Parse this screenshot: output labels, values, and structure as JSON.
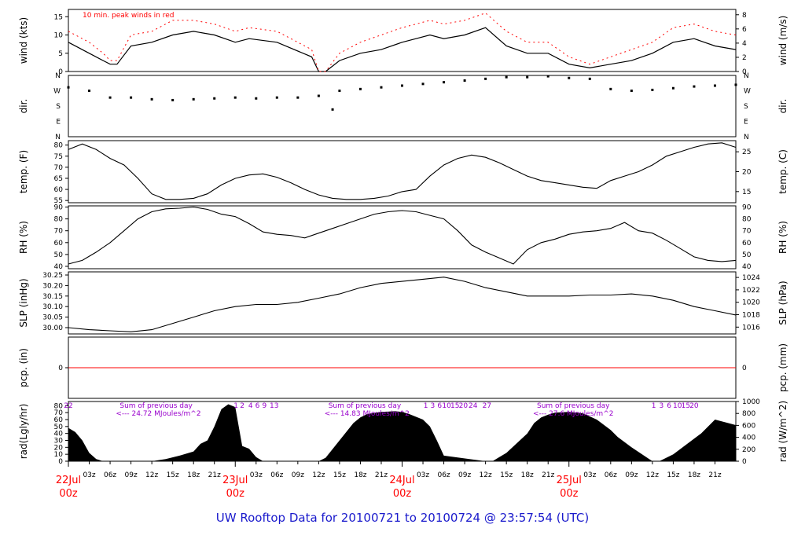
{
  "footer": {
    "title": "UW Rooftop Data for 20100721  to  20100724 @ 23:57:54  (UTC)"
  },
  "colors": {
    "peak": "#ff0000",
    "annot": "#9900cc",
    "date": "#ff0000",
    "title": "#1a1acc",
    "trace": "#000000"
  },
  "chart_data": [
    {
      "type": "line",
      "id": "wind",
      "ylabel": "wind (kts)",
      "ylabel_right": "wind (m/s)",
      "annotation": "10 min. peak winds in red",
      "ylim": [
        0,
        17
      ],
      "yticks": [
        0,
        5,
        10,
        15
      ],
      "ylim_right": [
        0,
        8.75
      ],
      "yticks_right": [
        0,
        2,
        4,
        6,
        8
      ],
      "x_hours": [
        0,
        3,
        5,
        6,
        7,
        9,
        12,
        15,
        18,
        21,
        24,
        26,
        30,
        35,
        36,
        37,
        39,
        42,
        45,
        48,
        50,
        52,
        54,
        57,
        60,
        63,
        66,
        69,
        72,
        75,
        78,
        81,
        84,
        87,
        90,
        93,
        96
      ],
      "series": [
        {
          "role": "mean",
          "values": [
            8,
            5,
            3,
            2,
            2,
            7,
            8,
            10,
            11,
            10,
            8,
            9,
            8,
            4,
            0,
            0,
            3,
            5,
            6,
            8,
            9,
            10,
            9,
            10,
            12,
            7,
            5,
            5,
            2,
            1,
            2,
            3,
            5,
            8,
            9,
            7,
            6
          ]
        },
        {
          "role": "peak",
          "values": [
            11,
            8,
            5,
            3,
            3,
            10,
            11,
            14,
            14,
            13,
            11,
            12,
            11,
            6,
            0,
            0,
            5,
            8,
            10,
            12,
            13,
            14,
            13,
            14,
            16,
            11,
            8,
            8,
            4,
            2,
            4,
            6,
            8,
            12,
            13,
            11,
            10
          ]
        }
      ]
    },
    {
      "type": "scatter",
      "id": "dir",
      "ylabel": "dir.",
      "ylabel_right": "dir.",
      "ylim": [
        0,
        360
      ],
      "ytick_labels": [
        "N",
        "E",
        "S",
        "W",
        "N"
      ],
      "x_hours": [
        0,
        3,
        6,
        9,
        12,
        15,
        18,
        21,
        24,
        27,
        30,
        33,
        36,
        38,
        39,
        42,
        45,
        48,
        51,
        54,
        57,
        60,
        63,
        66,
        69,
        72,
        75,
        78,
        81,
        84,
        87,
        90,
        93,
        96
      ],
      "values": [
        290,
        270,
        230,
        230,
        220,
        215,
        220,
        225,
        230,
        225,
        230,
        230,
        240,
        160,
        270,
        280,
        290,
        300,
        310,
        320,
        330,
        340,
        350,
        350,
        355,
        345,
        340,
        280,
        270,
        275,
        285,
        295,
        300,
        305
      ]
    },
    {
      "type": "line",
      "id": "temp",
      "ylabel": "temp. (F)",
      "ylabel_right": "temp. (C)",
      "ylim": [
        54,
        82
      ],
      "yticks": [
        55,
        60,
        65,
        70,
        75,
        80
      ],
      "ylim_right": [
        12.2,
        27.8
      ],
      "yticks_right": [
        15,
        20,
        25
      ],
      "x_hours": [
        0,
        2,
        4,
        6,
        8,
        10,
        12,
        14,
        16,
        18,
        20,
        22,
        24,
        26,
        28,
        30,
        32,
        34,
        36,
        38,
        40,
        42,
        44,
        46,
        48,
        50,
        52,
        54,
        56,
        58,
        60,
        62,
        64,
        66,
        68,
        70,
        72,
        74,
        76,
        78,
        80,
        82,
        84,
        86,
        88,
        90,
        92,
        94,
        96
      ],
      "values": [
        78,
        80.5,
        78,
        74,
        71,
        65,
        58,
        55.5,
        55.5,
        56,
        58,
        62,
        65,
        66.5,
        67,
        65.5,
        63,
        60,
        57.5,
        56,
        55.5,
        55.5,
        56,
        57,
        59,
        60,
        66,
        71,
        74,
        75.5,
        74.5,
        72,
        69,
        66,
        64,
        63,
        62,
        61,
        60.5,
        64,
        66,
        68,
        71,
        75,
        77,
        79,
        80.5,
        81,
        79
      ]
    },
    {
      "type": "line",
      "id": "rh",
      "ylabel": "RH (%)",
      "ylabel_right": "RH (%)",
      "ylim": [
        38,
        91
      ],
      "yticks": [
        40,
        50,
        60,
        70,
        80,
        90
      ],
      "x_hours": [
        0,
        2,
        4,
        6,
        8,
        10,
        12,
        14,
        16,
        18,
        20,
        22,
        24,
        26,
        28,
        30,
        32,
        34,
        36,
        38,
        40,
        42,
        44,
        46,
        48,
        50,
        52,
        54,
        56,
        58,
        60,
        62,
        64,
        66,
        68,
        70,
        72,
        74,
        76,
        78,
        80,
        82,
        84,
        86,
        88,
        90,
        92,
        94,
        96
      ],
      "values": [
        42,
        45,
        52,
        60,
        70,
        80,
        86,
        88.5,
        89,
        90,
        88,
        84,
        82,
        76,
        69,
        67,
        66,
        64,
        68,
        72,
        76,
        80,
        84,
        86,
        87,
        86,
        83,
        80,
        70,
        58,
        52,
        47,
        42,
        54,
        60,
        63,
        67,
        69,
        70,
        72,
        77,
        70,
        68,
        62,
        55,
        48,
        45,
        44,
        45
      ]
    },
    {
      "type": "line",
      "id": "slp",
      "ylabel": "SLP (inHg)",
      "ylabel_right": "SLP (hPa)",
      "ylim": [
        29.97,
        30.265
      ],
      "yticks": [
        30.0,
        30.05,
        30.1,
        30.15,
        30.2,
        30.25
      ],
      "ytick_labels": [
        "30.00",
        "30.05",
        "30.10",
        "30.15",
        "30.20",
        "30.25"
      ],
      "ylim_right": [
        1014.9,
        1024.9
      ],
      "yticks_right": [
        1016,
        1018,
        1020,
        1022,
        1024
      ],
      "x_hours": [
        0,
        3,
        6,
        9,
        12,
        15,
        18,
        21,
        24,
        27,
        30,
        33,
        36,
        39,
        42,
        45,
        48,
        51,
        54,
        57,
        60,
        63,
        66,
        69,
        72,
        75,
        78,
        81,
        84,
        87,
        90,
        93,
        96
      ],
      "values": [
        30.0,
        29.99,
        29.985,
        29.98,
        29.99,
        30.02,
        30.05,
        30.08,
        30.1,
        30.11,
        30.11,
        30.12,
        30.14,
        30.16,
        30.19,
        30.21,
        30.22,
        30.23,
        30.24,
        30.22,
        30.19,
        30.17,
        30.15,
        30.15,
        30.15,
        30.155,
        30.155,
        30.16,
        30.15,
        30.13,
        30.1,
        30.08,
        30.06
      ]
    },
    {
      "type": "line",
      "id": "pcp",
      "ylabel": "pcp. (in)",
      "ylabel_right": "pcp. (mm)",
      "ylim": [
        -1,
        1
      ],
      "yticks": [
        0
      ],
      "yticks_right": [
        0
      ],
      "x_hours": [
        0,
        96
      ],
      "values": [
        0,
        0
      ]
    },
    {
      "type": "area",
      "id": "rad",
      "ylabel": "rad(Lgly/hr)",
      "ylabel_right": "rad (W/m^2)",
      "ylim": [
        0,
        86
      ],
      "yticks": [
        0,
        10,
        20,
        30,
        40,
        50,
        60,
        70,
        80
      ],
      "ylim_right": [
        0,
        1000
      ],
      "yticks_right": [
        0,
        200,
        400,
        600,
        800,
        1000
      ],
      "x_hours": [
        0,
        1,
        2,
        3,
        4,
        5,
        12,
        14,
        16,
        18,
        19,
        20,
        21,
        22,
        23,
        24,
        25,
        26,
        27,
        28,
        29,
        36,
        37,
        39,
        41,
        42,
        43,
        45,
        47,
        48,
        49,
        51,
        52,
        53,
        54,
        60,
        61,
        63,
        66,
        67,
        68,
        69,
        70,
        72,
        74,
        76,
        78,
        79,
        81,
        84,
        85,
        87,
        91,
        93,
        96
      ],
      "values": [
        48,
        42,
        30,
        12,
        3,
        0,
        0,
        3,
        8,
        14,
        25,
        30,
        50,
        75,
        82,
        78,
        22,
        18,
        6,
        0,
        0,
        0,
        5,
        30,
        55,
        63,
        68,
        71,
        72,
        71,
        68,
        60,
        50,
        30,
        8,
        0,
        0,
        12,
        40,
        55,
        63,
        67,
        70,
        71,
        69,
        60,
        45,
        35,
        20,
        0,
        0,
        10,
        40,
        60,
        52
      ],
      "day_tick_labels": [
        {
          "hour": 0,
          "text": "22"
        },
        {
          "hour": 24.1,
          "text": "1"
        },
        {
          "hour": 25,
          "text": "2"
        },
        {
          "hour": 26.2,
          "text": "4"
        },
        {
          "hour": 27.2,
          "text": "6"
        },
        {
          "hour": 28.2,
          "text": "9"
        },
        {
          "hour": 29.6,
          "text": "13"
        },
        {
          "hour": 51.4,
          "text": "1"
        },
        {
          "hour": 52.4,
          "text": "3"
        },
        {
          "hour": 53.4,
          "text": "6"
        },
        {
          "hour": 54.4,
          "text": "10"
        },
        {
          "hour": 55.6,
          "text": "15"
        },
        {
          "hour": 56.8,
          "text": "20"
        },
        {
          "hour": 58.2,
          "text": "24"
        },
        {
          "hour": 60.2,
          "text": "27"
        },
        {
          "hour": 84.2,
          "text": "1"
        },
        {
          "hour": 85.3,
          "text": "3"
        },
        {
          "hour": 86.4,
          "text": "6"
        },
        {
          "hour": 87.6,
          "text": "10"
        },
        {
          "hour": 88.8,
          "text": "15"
        },
        {
          "hour": 90,
          "text": "20"
        }
      ],
      "daily_sums": [
        {
          "hour": 4,
          "line1": "Sum of previous day",
          "line2": "<--- 24.72 MJoules/m^2"
        },
        {
          "hour": 34,
          "line1": "Sum of previous day",
          "line2": "<--- 14.83 MJoules/m^2"
        },
        {
          "hour": 64,
          "line1": "Sum of previous day",
          "line2": "<--- 27.6 MJoules/m^2"
        }
      ]
    }
  ],
  "x_axis": {
    "range_hours": [
      0,
      96
    ],
    "hour_ticks": [
      {
        "hour": 3,
        "label": "03z"
      },
      {
        "hour": 6,
        "label": "06z"
      },
      {
        "hour": 9,
        "label": "09z"
      },
      {
        "hour": 12,
        "label": "12z"
      },
      {
        "hour": 15,
        "label": "15z"
      },
      {
        "hour": 18,
        "label": "18z"
      },
      {
        "hour": 21,
        "label": "21z"
      },
      {
        "hour": 27,
        "label": "03z"
      },
      {
        "hour": 30,
        "label": "06z"
      },
      {
        "hour": 33,
        "label": "09z"
      },
      {
        "hour": 36,
        "label": "12z"
      },
      {
        "hour": 39,
        "label": "15z"
      },
      {
        "hour": 42,
        "label": "18z"
      },
      {
        "hour": 45,
        "label": "21z"
      },
      {
        "hour": 51,
        "label": "03z"
      },
      {
        "hour": 54,
        "label": "06z"
      },
      {
        "hour": 57,
        "label": "09z"
      },
      {
        "hour": 60,
        "label": "12z"
      },
      {
        "hour": 63,
        "label": "15z"
      },
      {
        "hour": 66,
        "label": "18z"
      },
      {
        "hour": 69,
        "label": "21z"
      },
      {
        "hour": 75,
        "label": "03z"
      },
      {
        "hour": 78,
        "label": "06z"
      },
      {
        "hour": 81,
        "label": "09z"
      },
      {
        "hour": 84,
        "label": "12z"
      },
      {
        "hour": 87,
        "label": "15z"
      },
      {
        "hour": 90,
        "label": "18z"
      },
      {
        "hour": 93,
        "label": "21z"
      }
    ],
    "date_ticks": [
      {
        "hour": 0,
        "date": "22Jul",
        "time": "00z"
      },
      {
        "hour": 24,
        "date": "23Jul",
        "time": "00z"
      },
      {
        "hour": 48,
        "date": "24Jul",
        "time": "00z"
      },
      {
        "hour": 72,
        "date": "25Jul",
        "time": "00z"
      }
    ]
  }
}
